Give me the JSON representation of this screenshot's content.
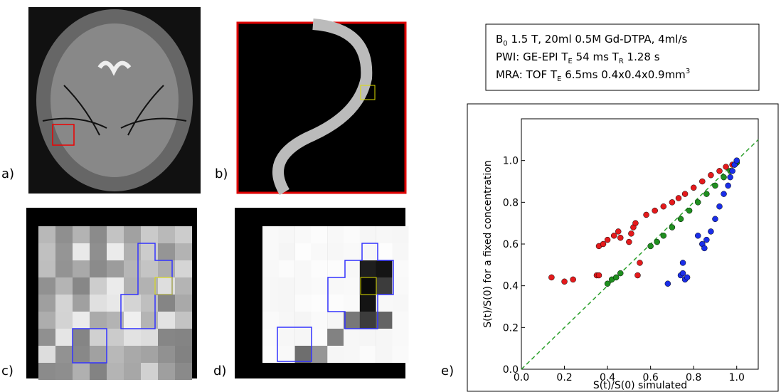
{
  "panels": [
    "a)",
    "b)",
    "c)",
    "d)",
    "e)"
  ],
  "params": [
    [
      "B",
      "0",
      " 1.5 T, 20ml 0.5M Gd-DTPA, 4ml/s"
    ],
    [
      "PWI: GE-EPI T",
      "E",
      " 54 ms T",
      "R",
      " 1.28 s"
    ],
    [
      "MRA: TOF T",
      "E",
      " 6.5ms 0.4x0.4x0.9mm",
      "3"
    ]
  ],
  "chart_data": {
    "type": "scatter",
    "xlabel": "S(t)/S(0) simulated",
    "ylabel": "S(t)/S(0) for a fixed concentration",
    "xlim": [
      0,
      1.1
    ],
    "ylim": [
      0,
      1.2
    ],
    "xticks": [
      {
        "value": 0,
        "label": "0.0"
      },
      {
        "value": 0.2,
        "label": "0.2"
      },
      {
        "value": 0.4,
        "label": "0.4"
      },
      {
        "value": 0.6,
        "label": "0.6"
      },
      {
        "value": 0.8,
        "label": "0.8"
      },
      {
        "value": 1,
        "label": "1.0"
      }
    ],
    "yticks": [
      {
        "value": 0,
        "label": "0.0"
      },
      {
        "value": 0.2,
        "label": "0.2"
      },
      {
        "value": 0.4,
        "label": "0.4"
      },
      {
        "value": 0.6,
        "label": "0.6"
      },
      {
        "value": 0.8,
        "label": "0.8"
      },
      {
        "value": 1,
        "label": "1.0"
      }
    ],
    "reference_line_color": "#2ca02c",
    "series": [
      {
        "color": "#e41a1c",
        "x": [
          0.14,
          0.2,
          0.24,
          0.35,
          0.36,
          0.36,
          0.38,
          0.4,
          0.43,
          0.45,
          0.46,
          0.5,
          0.51,
          0.52,
          0.53,
          0.55,
          0.54,
          0.58,
          0.62,
          0.66,
          0.7,
          0.73,
          0.76,
          0.8,
          0.84,
          0.88,
          0.92,
          0.95,
          0.98,
          1.0
        ],
        "values": [
          0.44,
          0.42,
          0.43,
          0.45,
          0.45,
          0.59,
          0.6,
          0.62,
          0.64,
          0.66,
          0.63,
          0.61,
          0.65,
          0.68,
          0.7,
          0.51,
          0.45,
          0.74,
          0.76,
          0.78,
          0.8,
          0.82,
          0.84,
          0.87,
          0.9,
          0.93,
          0.95,
          0.97,
          0.98,
          0.99
        ]
      },
      {
        "color": "#1f8f1f",
        "x": [
          0.4,
          0.42,
          0.44,
          0.46,
          0.6,
          0.63,
          0.66,
          0.7,
          0.74,
          0.78,
          0.82,
          0.86,
          0.9,
          0.94,
          0.97,
          0.99,
          1.0
        ],
        "values": [
          0.41,
          0.43,
          0.44,
          0.46,
          0.59,
          0.61,
          0.64,
          0.68,
          0.72,
          0.76,
          0.8,
          0.84,
          0.88,
          0.92,
          0.95,
          0.98,
          0.99
        ]
      },
      {
        "color": "#1a2ee8",
        "x": [
          0.68,
          0.74,
          0.75,
          0.76,
          0.77,
          0.75,
          0.82,
          0.84,
          0.85,
          0.86,
          0.88,
          0.9,
          0.92,
          0.94,
          0.96,
          0.97,
          0.98,
          0.99,
          1.0
        ],
        "values": [
          0.41,
          0.45,
          0.46,
          0.43,
          0.44,
          0.51,
          0.64,
          0.6,
          0.58,
          0.62,
          0.66,
          0.72,
          0.78,
          0.84,
          0.88,
          0.92,
          0.95,
          0.98,
          1.0
        ]
      }
    ]
  }
}
